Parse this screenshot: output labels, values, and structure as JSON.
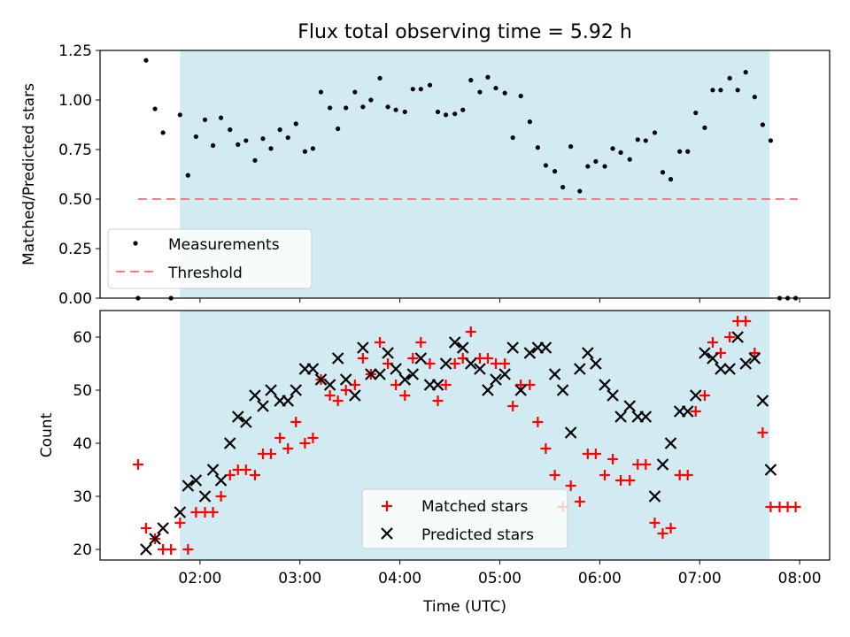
{
  "chart_data": [
    {
      "type": "scatter",
      "title": "Flux total observing time = 5.92 h",
      "xlabel": "",
      "ylabel": "Matched/Predicted stars",
      "x_unit": "hours_utc",
      "xlim": [
        1.0,
        8.3
      ],
      "ylim": [
        0,
        1.25
      ],
      "yticks": [
        "0.00",
        "0.25",
        "0.50",
        "0.75",
        "1.00",
        "1.25"
      ],
      "yticks_values": [
        0,
        0.25,
        0.5,
        0.75,
        1.0,
        1.25
      ],
      "observing_window": [
        1.8,
        7.7
      ],
      "threshold": {
        "value": 0.5,
        "x": [
          1.38,
          7.98
        ]
      },
      "legend": [
        "Measurements",
        "Threshold"
      ],
      "legend_position": "lower-left",
      "series": [
        {
          "name": "Measurements",
          "points": [
            [
              1.38,
              0.0
            ],
            [
              1.46,
              1.2
            ],
            [
              1.55,
              0.955
            ],
            [
              1.63,
              0.835
            ],
            [
              1.71,
              0.0
            ],
            [
              1.8,
              0.925
            ],
            [
              1.88,
              0.62
            ],
            [
              1.96,
              0.815
            ],
            [
              2.05,
              0.9
            ],
            [
              2.13,
              0.77
            ],
            [
              2.21,
              0.91
            ],
            [
              2.3,
              0.85
            ],
            [
              2.38,
              0.775
            ],
            [
              2.46,
              0.795
            ],
            [
              2.55,
              0.695
            ],
            [
              2.63,
              0.805
            ],
            [
              2.71,
              0.755
            ],
            [
              2.8,
              0.85
            ],
            [
              2.88,
              0.81
            ],
            [
              2.96,
              0.88
            ],
            [
              3.05,
              0.74
            ],
            [
              3.13,
              0.755
            ],
            [
              3.21,
              1.04
            ],
            [
              3.3,
              0.96
            ],
            [
              3.38,
              0.855
            ],
            [
              3.46,
              0.96
            ],
            [
              3.55,
              1.04
            ],
            [
              3.63,
              0.965
            ],
            [
              3.71,
              1.0
            ],
            [
              3.8,
              1.11
            ],
            [
              3.88,
              0.965
            ],
            [
              3.96,
              0.95
            ],
            [
              4.05,
              0.94
            ],
            [
              4.13,
              1.055
            ],
            [
              4.21,
              1.055
            ],
            [
              4.3,
              1.075
            ],
            [
              4.38,
              0.94
            ],
            [
              4.46,
              0.925
            ],
            [
              4.55,
              0.93
            ],
            [
              4.63,
              0.95
            ],
            [
              4.71,
              1.1
            ],
            [
              4.8,
              1.04
            ],
            [
              4.88,
              1.115
            ],
            [
              4.96,
              1.06
            ],
            [
              5.05,
              1.035
            ],
            [
              5.13,
              0.81
            ],
            [
              5.21,
              1.02
            ],
            [
              5.3,
              0.89
            ],
            [
              5.38,
              0.76
            ],
            [
              5.46,
              0.67
            ],
            [
              5.55,
              0.64
            ],
            [
              5.63,
              0.56
            ],
            [
              5.71,
              0.765
            ],
            [
              5.8,
              0.54
            ],
            [
              5.88,
              0.665
            ],
            [
              5.96,
              0.69
            ],
            [
              6.05,
              0.665
            ],
            [
              6.13,
              0.755
            ],
            [
              6.21,
              0.735
            ],
            [
              6.3,
              0.7
            ],
            [
              6.38,
              0.8
            ],
            [
              6.46,
              0.795
            ],
            [
              6.55,
              0.835
            ],
            [
              6.63,
              0.635
            ],
            [
              6.71,
              0.6
            ],
            [
              6.8,
              0.74
            ],
            [
              6.88,
              0.74
            ],
            [
              6.96,
              0.935
            ],
            [
              7.05,
              0.86
            ],
            [
              7.13,
              1.05
            ],
            [
              7.21,
              1.05
            ],
            [
              7.3,
              1.11
            ],
            [
              7.38,
              1.05
            ],
            [
              7.46,
              1.14
            ],
            [
              7.55,
              1.015
            ],
            [
              7.63,
              0.875
            ],
            [
              7.71,
              0.795
            ],
            [
              7.8,
              0.0
            ],
            [
              7.88,
              0.0
            ],
            [
              7.96,
              0.0
            ]
          ]
        }
      ]
    },
    {
      "type": "scatter",
      "title": "",
      "xlabel": "Time (UTC)",
      "ylabel": "Count",
      "x_unit": "hours_utc",
      "xlim": [
        1.0,
        8.3
      ],
      "ylim": [
        18,
        65
      ],
      "yticks": [
        "20",
        "30",
        "40",
        "50",
        "60"
      ],
      "yticks_values": [
        20,
        30,
        40,
        50,
        60
      ],
      "xticks": [
        "02:00",
        "03:00",
        "04:00",
        "05:00",
        "06:00",
        "07:00",
        "08:00"
      ],
      "xticks_values": [
        2,
        3,
        4,
        5,
        6,
        7,
        8
      ],
      "observing_window": [
        1.8,
        7.7
      ],
      "legend": [
        "Matched stars",
        "Predicted stars"
      ],
      "legend_position": "lower-center",
      "series": [
        {
          "name": "Matched stars",
          "color": "#ff0000",
          "marker": "plus",
          "points": [
            [
              1.38,
              36
            ],
            [
              1.46,
              24
            ],
            [
              1.55,
              22
            ],
            [
              1.63,
              20
            ],
            [
              1.71,
              20
            ],
            [
              1.8,
              25
            ],
            [
              1.88,
              20
            ],
            [
              1.96,
              27
            ],
            [
              2.05,
              27
            ],
            [
              2.13,
              27
            ],
            [
              2.21,
              30
            ],
            [
              2.3,
              34
            ],
            [
              2.38,
              35
            ],
            [
              2.46,
              35
            ],
            [
              2.55,
              34
            ],
            [
              2.63,
              38
            ],
            [
              2.71,
              38
            ],
            [
              2.8,
              41
            ],
            [
              2.88,
              39
            ],
            [
              2.96,
              44
            ],
            [
              3.05,
              40
            ],
            [
              3.13,
              41
            ],
            [
              3.21,
              52
            ],
            [
              3.3,
              49
            ],
            [
              3.38,
              48
            ],
            [
              3.46,
              50
            ],
            [
              3.55,
              51
            ],
            [
              3.63,
              56
            ],
            [
              3.71,
              53
            ],
            [
              3.8,
              59
            ],
            [
              3.88,
              55
            ],
            [
              3.96,
              51
            ],
            [
              4.05,
              49
            ],
            [
              4.13,
              56
            ],
            [
              4.21,
              59
            ],
            [
              4.3,
              55
            ],
            [
              4.38,
              48
            ],
            [
              4.46,
              51
            ],
            [
              4.55,
              55
            ],
            [
              4.63,
              56
            ],
            [
              4.71,
              61
            ],
            [
              4.8,
              56
            ],
            [
              4.88,
              56
            ],
            [
              4.96,
              55
            ],
            [
              5.05,
              55
            ],
            [
              5.13,
              47
            ],
            [
              5.21,
              51
            ],
            [
              5.3,
              51
            ],
            [
              5.38,
              44
            ],
            [
              5.46,
              39
            ],
            [
              5.55,
              34
            ],
            [
              5.63,
              28
            ],
            [
              5.71,
              32
            ],
            [
              5.8,
              29
            ],
            [
              5.88,
              38
            ],
            [
              5.96,
              38
            ],
            [
              6.05,
              34
            ],
            [
              6.13,
              37
            ],
            [
              6.21,
              33
            ],
            [
              6.3,
              33
            ],
            [
              6.38,
              36
            ],
            [
              6.46,
              36
            ],
            [
              6.55,
              25
            ],
            [
              6.63,
              23
            ],
            [
              6.71,
              24
            ],
            [
              6.8,
              34
            ],
            [
              6.88,
              34
            ],
            [
              6.96,
              46
            ],
            [
              7.05,
              49
            ],
            [
              7.13,
              59
            ],
            [
              7.21,
              57
            ],
            [
              7.3,
              60
            ],
            [
              7.38,
              63
            ],
            [
              7.46,
              63
            ],
            [
              7.55,
              57
            ],
            [
              7.63,
              42
            ],
            [
              7.71,
              28
            ],
            [
              7.8,
              28
            ],
            [
              7.88,
              28
            ],
            [
              7.96,
              28
            ]
          ]
        },
        {
          "name": "Predicted stars",
          "color": "#000000",
          "marker": "x",
          "points": [
            [
              1.46,
              20
            ],
            [
              1.55,
              22
            ],
            [
              1.63,
              24
            ],
            [
              1.8,
              27
            ],
            [
              1.88,
              32
            ],
            [
              1.96,
              33
            ],
            [
              2.05,
              30
            ],
            [
              2.13,
              35
            ],
            [
              2.21,
              33
            ],
            [
              2.3,
              40
            ],
            [
              2.38,
              45
            ],
            [
              2.46,
              44
            ],
            [
              2.55,
              49
            ],
            [
              2.63,
              47
            ],
            [
              2.71,
              50
            ],
            [
              2.8,
              48
            ],
            [
              2.88,
              48
            ],
            [
              2.96,
              50
            ],
            [
              3.05,
              54
            ],
            [
              3.13,
              54
            ],
            [
              3.21,
              52
            ],
            [
              3.3,
              51
            ],
            [
              3.38,
              56
            ],
            [
              3.46,
              52
            ],
            [
              3.55,
              49
            ],
            [
              3.63,
              58
            ],
            [
              3.71,
              53
            ],
            [
              3.8,
              53
            ],
            [
              3.88,
              57
            ],
            [
              3.96,
              54
            ],
            [
              4.05,
              52
            ],
            [
              4.13,
              53
            ],
            [
              4.21,
              56
            ],
            [
              4.3,
              51
            ],
            [
              4.38,
              51
            ],
            [
              4.46,
              55
            ],
            [
              4.55,
              59
            ],
            [
              4.63,
              58
            ],
            [
              4.71,
              55
            ],
            [
              4.8,
              54
            ],
            [
              4.88,
              50
            ],
            [
              4.96,
              52
            ],
            [
              5.05,
              53
            ],
            [
              5.13,
              58
            ],
            [
              5.21,
              50
            ],
            [
              5.3,
              57
            ],
            [
              5.38,
              58
            ],
            [
              5.46,
              58
            ],
            [
              5.55,
              53
            ],
            [
              5.63,
              50
            ],
            [
              5.71,
              42
            ],
            [
              5.8,
              54
            ],
            [
              5.88,
              57
            ],
            [
              5.96,
              55
            ],
            [
              6.05,
              51
            ],
            [
              6.13,
              49
            ],
            [
              6.21,
              45
            ],
            [
              6.3,
              47
            ],
            [
              6.38,
              45
            ],
            [
              6.46,
              45
            ],
            [
              6.55,
              30
            ],
            [
              6.63,
              36
            ],
            [
              6.71,
              40
            ],
            [
              6.8,
              46
            ],
            [
              6.88,
              46
            ],
            [
              6.96,
              49
            ],
            [
              7.05,
              57
            ],
            [
              7.13,
              56
            ],
            [
              7.21,
              54
            ],
            [
              7.3,
              54
            ],
            [
              7.38,
              60
            ],
            [
              7.46,
              55
            ],
            [
              7.55,
              56
            ],
            [
              7.63,
              48
            ],
            [
              7.71,
              35
            ]
          ]
        }
      ]
    }
  ]
}
